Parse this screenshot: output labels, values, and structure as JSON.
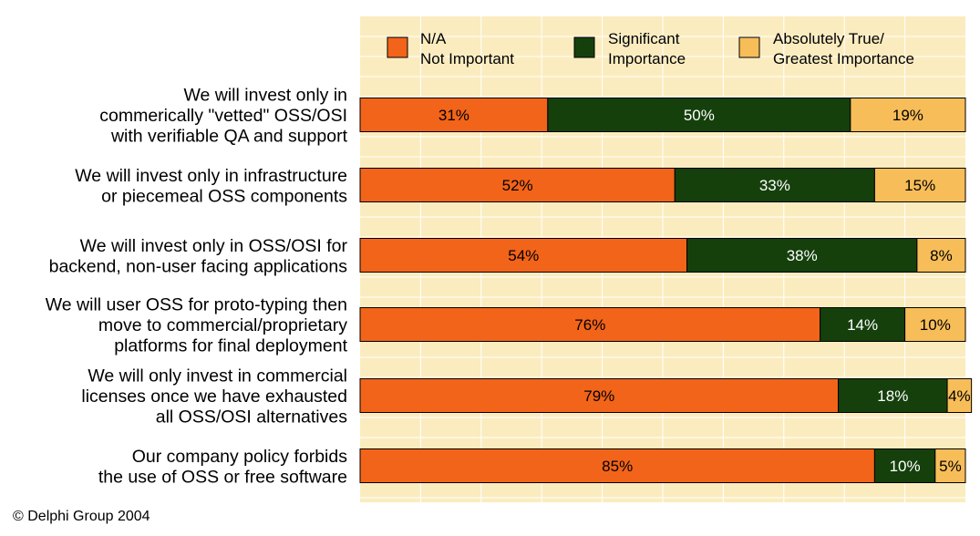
{
  "credit": "© Delphi Group 2004",
  "chart_data": {
    "type": "bar",
    "orientation": "horizontal",
    "stacked": true,
    "percent_stacked": true,
    "legend_placement": "top",
    "grid": "vertical",
    "xlim": [
      0,
      100
    ],
    "colors": {
      "N/A\nNot Important": "#f26419",
      "Significant\nImportance": "#15400c",
      "Absolutely True/\nGreatest Importance": "#f7bd58",
      "plot_background": "#fbecbf"
    },
    "categories": [
      "We will invest only in\ncommerically \"vetted\" OSS/OSI\nwith verifiable QA and support",
      "We will invest only in infrastructure\nor piecemeal OSS components",
      "We will invest only in OSS/OSI for\nbackend, non-user facing applications",
      "We will user OSS for proto-typing then\nmove to commercial/proprietary\nplatforms for final deployment",
      "We will only invest in commercial\nlicenses once we have exhausted\nall OSS/OSI alternatives",
      "Our company policy forbids\nthe use of OSS or free software"
    ],
    "series": [
      {
        "name": "N/A\nNot Important",
        "values": [
          31,
          52,
          54,
          76,
          79,
          85
        ]
      },
      {
        "name": "Significant\nImportance",
        "values": [
          50,
          33,
          38,
          14,
          18,
          10
        ]
      },
      {
        "name": "Absolutely True/\nGreatest Importance",
        "values": [
          19,
          15,
          8,
          10,
          4,
          5
        ]
      }
    ]
  }
}
